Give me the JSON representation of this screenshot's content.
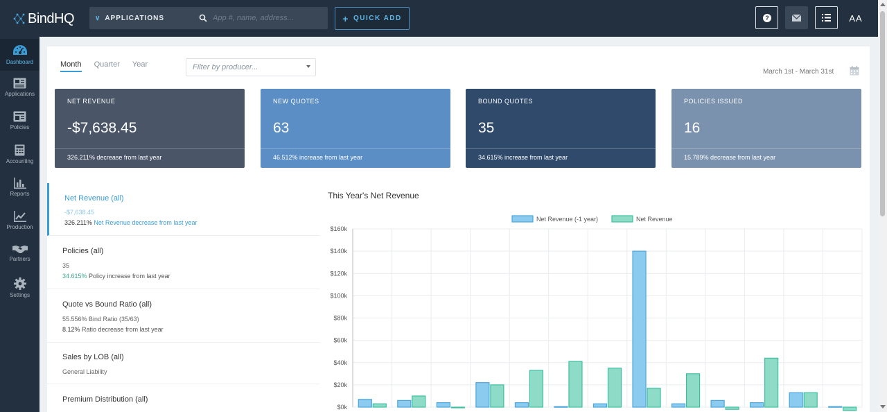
{
  "header": {
    "logo": "BindHQ",
    "app_selector": "APPLICATIONS",
    "search_placeholder": "App #, name, address...",
    "quick_add": "QUICK ADD",
    "avatar": "AA"
  },
  "sidebar": {
    "items": [
      {
        "label": "Dashboard",
        "icon": "dashboard-icon",
        "active": true
      },
      {
        "label": "Applications",
        "icon": "applications-icon"
      },
      {
        "label": "Policies",
        "icon": "policies-icon"
      },
      {
        "label": "Accounting",
        "icon": "calculator-icon"
      },
      {
        "label": "Reports",
        "icon": "bar-chart-icon"
      },
      {
        "label": "Production",
        "icon": "line-chart-icon"
      },
      {
        "label": "Partners",
        "icon": "handshake-icon"
      },
      {
        "label": "Settings",
        "icon": "gear-icon"
      }
    ]
  },
  "filters": {
    "tabs": [
      "Month",
      "Quarter",
      "Year"
    ],
    "active_tab": "Month",
    "producer_placeholder": "Filter by producer...",
    "date_range": "March 1st - March 31st"
  },
  "cards": [
    {
      "label": "NET REVENUE",
      "value": "-$7,638.45",
      "footer": "326.211% decrease from last year",
      "color": "#4a5568"
    },
    {
      "label": "NEW QUOTES",
      "value": "63",
      "footer": "46.512% increase from last year",
      "color": "#5a8ec4"
    },
    {
      "label": "BOUND QUOTES",
      "value": "35",
      "footer": "34.615% increase from last year",
      "color": "#2f4a6b"
    },
    {
      "label": "POLICIES ISSUED",
      "value": "16",
      "footer": "15.789% decrease from last year",
      "color": "#7a92ae"
    }
  ],
  "stats": [
    {
      "title": "Net Revenue (all)",
      "line1": "-$7,638.45",
      "pct": "326.211%",
      "rest": " Net Revenue decrease from last year"
    },
    {
      "title": "Policies (all)",
      "line1": "35",
      "pct": "34.615%",
      "rest": " Policy increase from last year"
    },
    {
      "title": "Quote vs Bound Ratio (all)",
      "line1": "55.556% Bind Ratio (35/63)",
      "pct": "8.12%",
      "rest": " Ratio decrease from last year"
    },
    {
      "title": "Sales by LOB (all)",
      "line1": "General Liability"
    },
    {
      "title": "Premium Distribution (all)"
    }
  ],
  "chart_data": {
    "type": "bar",
    "title": "This Year's Net Revenue",
    "series": [
      {
        "name": "Net Revenue (-1 year)",
        "color": "#8ccbf0",
        "values": [
          7000,
          6000,
          4000,
          22000,
          4000,
          500,
          3000,
          140000,
          3000,
          6000,
          4000,
          13000,
          500
        ]
      },
      {
        "name": "Net Revenue",
        "color": "#8edcc7",
        "values": [
          3000,
          10000,
          0,
          20000,
          33000,
          41000,
          35000,
          17000,
          30000,
          -2000,
          44000,
          13000,
          -3000
        ]
      }
    ],
    "ylim": [
      0,
      160000
    ],
    "yticks": [
      "$0k",
      "$20k",
      "$40k",
      "$60k",
      "$80k",
      "$100k",
      "$120k",
      "$140k",
      "$160k"
    ],
    "ytick_values": [
      0,
      20000,
      40000,
      60000,
      80000,
      100000,
      120000,
      140000,
      160000
    ],
    "legend": "top-center",
    "grid": true
  },
  "colors": {
    "accent": "#3a9bd5",
    "topbar": "#22303f",
    "green": "#3aaa8c"
  }
}
